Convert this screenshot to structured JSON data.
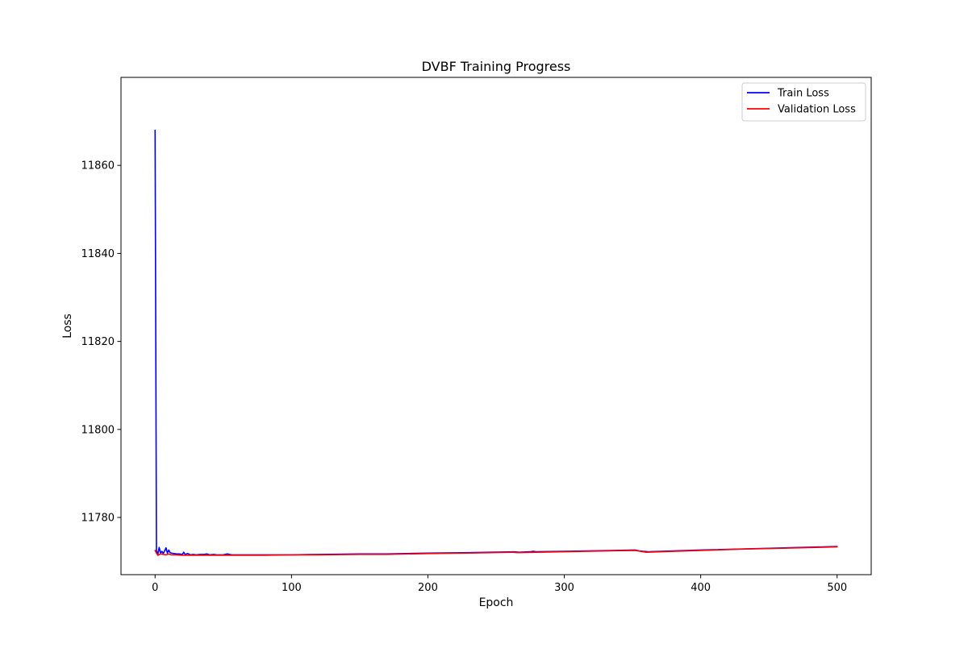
{
  "chart_data": {
    "type": "line",
    "title": "DVBF Training Progress",
    "xlabel": "Epoch",
    "ylabel": "Loss",
    "xlim": [
      -25,
      525
    ],
    "ylim": [
      11767,
      11880
    ],
    "x_ticks": [
      0,
      100,
      200,
      300,
      400,
      500
    ],
    "y_ticks": [
      11780,
      11800,
      11820,
      11840,
      11860
    ],
    "grid": false,
    "legend": {
      "position": "top-right"
    },
    "series": [
      {
        "name": "Train Loss",
        "color": "#0000ff",
        "points": [
          [
            0,
            11868.0
          ],
          [
            1,
            11772.5
          ],
          [
            2,
            11771.6
          ],
          [
            3,
            11773.2
          ],
          [
            4,
            11771.9
          ],
          [
            5,
            11772.3
          ],
          [
            6,
            11771.8
          ],
          [
            7,
            11772.4
          ],
          [
            8,
            11773.1
          ],
          [
            9,
            11771.9
          ],
          [
            10,
            11772.6
          ],
          [
            11,
            11772.0
          ],
          [
            12,
            11771.9
          ],
          [
            14,
            11771.8
          ],
          [
            16,
            11771.7
          ],
          [
            18,
            11771.7
          ],
          [
            20,
            11771.6
          ],
          [
            21,
            11772.1
          ],
          [
            22,
            11771.6
          ],
          [
            24,
            11771.8
          ],
          [
            26,
            11771.5
          ],
          [
            28,
            11771.6
          ],
          [
            30,
            11771.5
          ],
          [
            33,
            11771.6
          ],
          [
            36,
            11771.6
          ],
          [
            38,
            11771.7
          ],
          [
            40,
            11771.5
          ],
          [
            43,
            11771.6
          ],
          [
            45,
            11771.5
          ],
          [
            50,
            11771.5
          ],
          [
            53,
            11771.7
          ],
          [
            56,
            11771.5
          ],
          [
            60,
            11771.5
          ],
          [
            80,
            11771.5
          ],
          [
            100,
            11771.5
          ],
          [
            120,
            11771.6
          ],
          [
            150,
            11771.7
          ],
          [
            170,
            11771.7
          ],
          [
            200,
            11771.9
          ],
          [
            230,
            11772.0
          ],
          [
            263,
            11772.2
          ],
          [
            267,
            11772.1
          ],
          [
            275,
            11772.2
          ],
          [
            277,
            11772.3
          ],
          [
            280,
            11772.2
          ],
          [
            300,
            11772.3
          ],
          [
            352,
            11772.6
          ],
          [
            355,
            11772.4
          ],
          [
            358,
            11772.3
          ],
          [
            362,
            11772.2
          ],
          [
            400,
            11772.6
          ],
          [
            450,
            11773.0
          ],
          [
            500,
            11773.4
          ]
        ]
      },
      {
        "name": "Validation Loss",
        "color": "#ff0000",
        "points": [
          [
            0,
            11772.5
          ],
          [
            1,
            11771.9
          ],
          [
            2,
            11771.4
          ],
          [
            4,
            11771.7
          ],
          [
            6,
            11771.6
          ],
          [
            8,
            11771.5
          ],
          [
            10,
            11771.7
          ],
          [
            12,
            11771.5
          ],
          [
            15,
            11771.5
          ],
          [
            20,
            11771.4
          ],
          [
            30,
            11771.4
          ],
          [
            40,
            11771.4
          ],
          [
            50,
            11771.4
          ],
          [
            60,
            11771.4
          ],
          [
            80,
            11771.4
          ],
          [
            100,
            11771.5
          ],
          [
            120,
            11771.5
          ],
          [
            150,
            11771.6
          ],
          [
            170,
            11771.6
          ],
          [
            200,
            11771.8
          ],
          [
            230,
            11771.9
          ],
          [
            262,
            11772.1
          ],
          [
            266,
            11772.0
          ],
          [
            280,
            11772.1
          ],
          [
            300,
            11772.2
          ],
          [
            330,
            11772.4
          ],
          [
            352,
            11772.5
          ],
          [
            356,
            11772.3
          ],
          [
            360,
            11772.1
          ],
          [
            380,
            11772.3
          ],
          [
            400,
            11772.5
          ],
          [
            430,
            11772.8
          ],
          [
            460,
            11773.0
          ],
          [
            500,
            11773.3
          ]
        ]
      }
    ]
  }
}
